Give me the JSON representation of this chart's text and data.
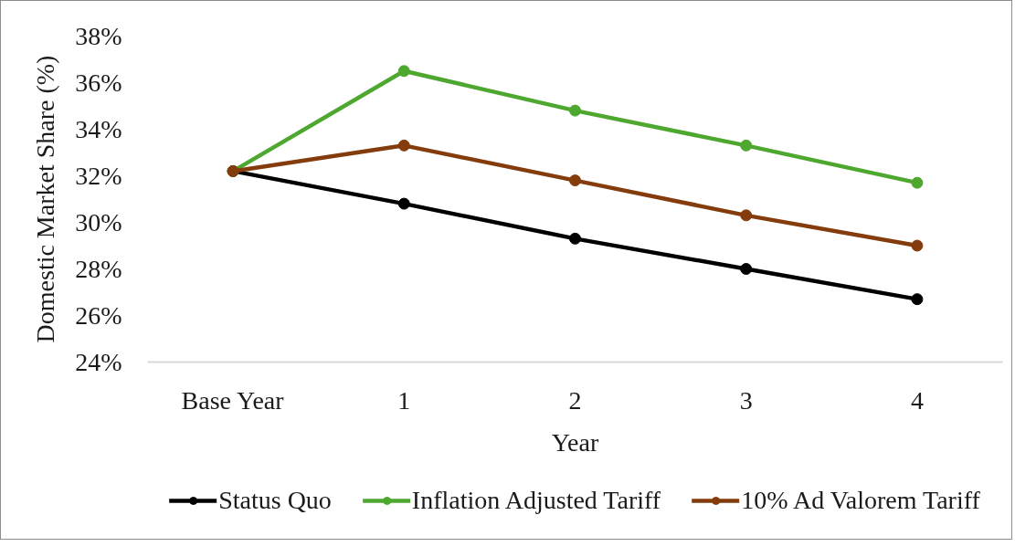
{
  "chart_data": {
    "type": "line",
    "xlabel": "Year",
    "ylabel": "Domestic Market Share (%)",
    "categories": [
      "Base Year",
      "1",
      "2",
      "3",
      "4"
    ],
    "series": [
      {
        "name": "Status Quo",
        "color": "#000000",
        "values": [
          32.2,
          30.8,
          29.3,
          28.0,
          26.7
        ]
      },
      {
        "name": "Inflation Adjusted Tariff",
        "color": "#4ea72e",
        "values": [
          32.2,
          36.5,
          34.8,
          33.3,
          31.7
        ]
      },
      {
        "name": "10% Ad Valorem Tariff",
        "color": "#843c0c",
        "values": [
          32.2,
          33.3,
          31.8,
          30.3,
          29.0
        ]
      }
    ],
    "ylim": [
      24,
      38
    ],
    "yticks": [
      {
        "value": 24,
        "label": "24%"
      },
      {
        "value": 26,
        "label": "26%"
      },
      {
        "value": 28,
        "label": "28%"
      },
      {
        "value": 30,
        "label": "30%"
      },
      {
        "value": 32,
        "label": "32%"
      },
      {
        "value": 34,
        "label": "34%"
      },
      {
        "value": 36,
        "label": "36%"
      },
      {
        "value": 38,
        "label": "38%"
      }
    ],
    "grid": false,
    "legend": "bottom",
    "marker": "circle",
    "line_style": "solid"
  }
}
